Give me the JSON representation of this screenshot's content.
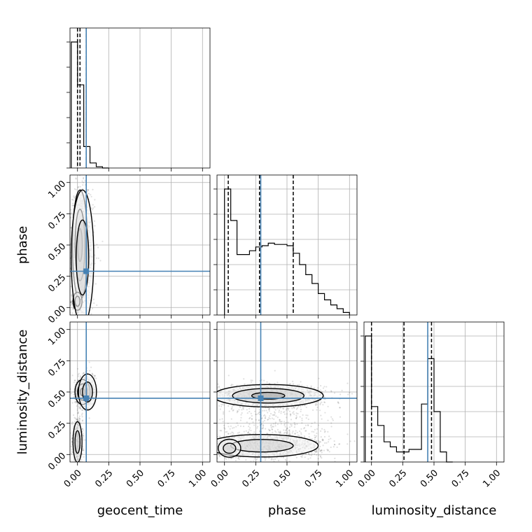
{
  "chart_data": {
    "type": "corner",
    "parameters": [
      "geocent_time",
      "phase",
      "luminosity_distance"
    ],
    "axis_ticks": [
      "0.00",
      "0.25",
      "0.50",
      "0.75",
      "1.00"
    ],
    "axis_range": [
      -0.06,
      1.06
    ],
    "grid": true,
    "truth_color": "#4682b4",
    "truths": {
      "geocent_time": 0.07,
      "phase": 0.29,
      "luminosity_distance": 0.45
    },
    "quantiles": {
      "geocent_time": [
        0.0,
        0.02,
        0.07
      ],
      "phase": [
        0.03,
        0.28,
        0.55
      ],
      "luminosity_distance": [
        0.0,
        0.26,
        0.48
      ]
    },
    "histograms": {
      "geocent_time": {
        "edges": [
          -0.05,
          0.0,
          0.05,
          0.1,
          0.15,
          0.2,
          0.25
        ],
        "counts": [
          100,
          66,
          17,
          4,
          1,
          0
        ]
      },
      "phase": {
        "edges": [
          0.0,
          0.05,
          0.1,
          0.15,
          0.2,
          0.25,
          0.3,
          0.35,
          0.4,
          0.45,
          0.5,
          0.55,
          0.6,
          0.65,
          0.7,
          0.75,
          0.8,
          0.85,
          0.9,
          0.95,
          1.0
        ],
        "counts": [
          100,
          75,
          48,
          48,
          51,
          54,
          55,
          57,
          56,
          56,
          55,
          49,
          40,
          32,
          25,
          17,
          12,
          8,
          5,
          2
        ]
      },
      "luminosity_distance": {
        "edges": [
          -0.05,
          0.0,
          0.05,
          0.1,
          0.15,
          0.2,
          0.25,
          0.3,
          0.35,
          0.4,
          0.45,
          0.5,
          0.55,
          0.6,
          0.65
        ],
        "counts": [
          100,
          44,
          29,
          16,
          12,
          8,
          8,
          10,
          10,
          46,
          82,
          40,
          8,
          0
        ]
      }
    },
    "densities": {
      "phase_vs_geocent_time": [
        {
          "x": 0.02,
          "y": 0.5,
          "sx": 0.03,
          "sy": 0.22,
          "n": 900
        },
        {
          "x": 0.0,
          "y": 0.05,
          "sx": 0.02,
          "sy": 0.04,
          "n": 300
        },
        {
          "x": 0.04,
          "y": 0.4,
          "sx": 0.05,
          "sy": 0.3,
          "n": 500
        }
      ],
      "luminosity_distance_vs_geocent_time": [
        {
          "x": 0.04,
          "y": 0.5,
          "sx": 0.03,
          "sy": 0.05,
          "n": 700
        },
        {
          "x": 0.0,
          "y": 0.1,
          "sx": 0.02,
          "sy": 0.09,
          "n": 500
        },
        {
          "x": 0.08,
          "y": 0.5,
          "sx": 0.04,
          "sy": 0.08,
          "n": 200
        }
      ],
      "luminosity_distance_vs_phase": [
        {
          "x": 0.35,
          "y": 0.47,
          "sx": 0.22,
          "sy": 0.045,
          "n": 1100
        },
        {
          "x": 0.3,
          "y": 0.07,
          "sx": 0.25,
          "sy": 0.05,
          "n": 1100
        },
        {
          "x": 0.04,
          "y": 0.05,
          "sx": 0.05,
          "sy": 0.04,
          "n": 300
        },
        {
          "x": 0.4,
          "y": 0.25,
          "sx": 0.25,
          "sy": 0.15,
          "n": 500
        }
      ]
    }
  }
}
